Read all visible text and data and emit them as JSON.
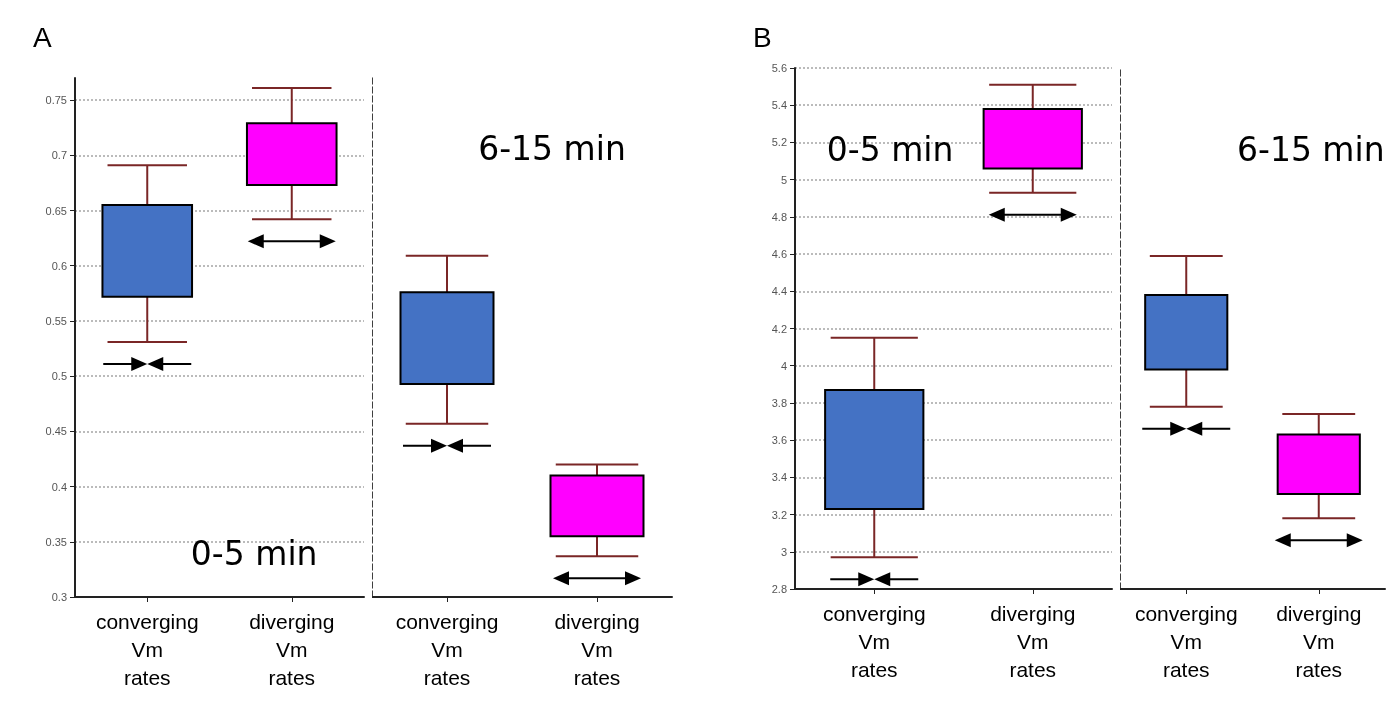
{
  "chart_data": [
    {
      "type": "box",
      "title": "A",
      "categories": [
        "converging\nVm\nrates",
        "diverging\nVm\nrates"
      ],
      "boxes": [
        {
          "low": 0.531,
          "q1": 0.572,
          "q3": 0.655,
          "high": 0.691
        },
        {
          "low": 0.642,
          "q1": 0.673,
          "q3": 0.729,
          "high": 0.761
        }
      ],
      "colors": [
        "#4472c4",
        "#ff00ff"
      ],
      "ylim": [
        0.3,
        0.77
      ],
      "yticks": [
        0.3,
        0.35,
        0.4,
        0.45,
        0.5,
        0.55,
        0.6,
        0.65,
        0.7,
        0.75
      ],
      "grid": "y",
      "annotations": [
        "0-5 min"
      ]
    },
    {
      "type": "box",
      "categories": [
        "converging\nVm\nrates",
        "diverging\nVm\nrates"
      ],
      "boxes": [
        {
          "low": 0.457,
          "q1": 0.493,
          "q3": 0.576,
          "high": 0.609
        },
        {
          "low": 0.337,
          "q1": 0.355,
          "q3": 0.41,
          "high": 0.42
        }
      ],
      "colors": [
        "#4472c4",
        "#ff00ff"
      ],
      "ylim": [
        0.3,
        0.77
      ],
      "grid": "y",
      "tick_labels": "x",
      "annotations": [
        "6-15 min"
      ]
    },
    {
      "type": "box",
      "title": "B",
      "categories": [
        "converging\nVm\nrates",
        "diverging\nVm\nrates"
      ],
      "boxes": [
        {
          "low": 2.97,
          "q1": 3.23,
          "q3": 3.87,
          "high": 4.15
        },
        {
          "low": 4.93,
          "q1": 5.06,
          "q3": 5.38,
          "high": 5.51
        }
      ],
      "colors": [
        "#4472c4",
        "#ff00ff"
      ],
      "ylim": [
        2.8,
        5.6
      ],
      "yticks": [
        2.8,
        3,
        3.2,
        3.4,
        3.6,
        3.8,
        4,
        4.2,
        4.4,
        4.6,
        4.8,
        5,
        5.2,
        5.4,
        5.6
      ],
      "grid": "y",
      "annotations": [
        "0-5 min"
      ]
    },
    {
      "type": "box",
      "categories": [
        "converging\nVm\nrates",
        "diverging\nVm\nrates"
      ],
      "boxes": [
        {
          "low": 3.78,
          "q1": 3.98,
          "q3": 4.38,
          "high": 4.59
        },
        {
          "low": 3.18,
          "q1": 3.31,
          "q3": 3.63,
          "high": 3.74
        }
      ],
      "colors": [
        "#4472c4",
        "#ff00ff"
      ],
      "ylim": [
        2.8,
        5.6
      ],
      "grid": "y",
      "tick_labels": "x",
      "annotations": [
        "6-15 min"
      ]
    }
  ]
}
